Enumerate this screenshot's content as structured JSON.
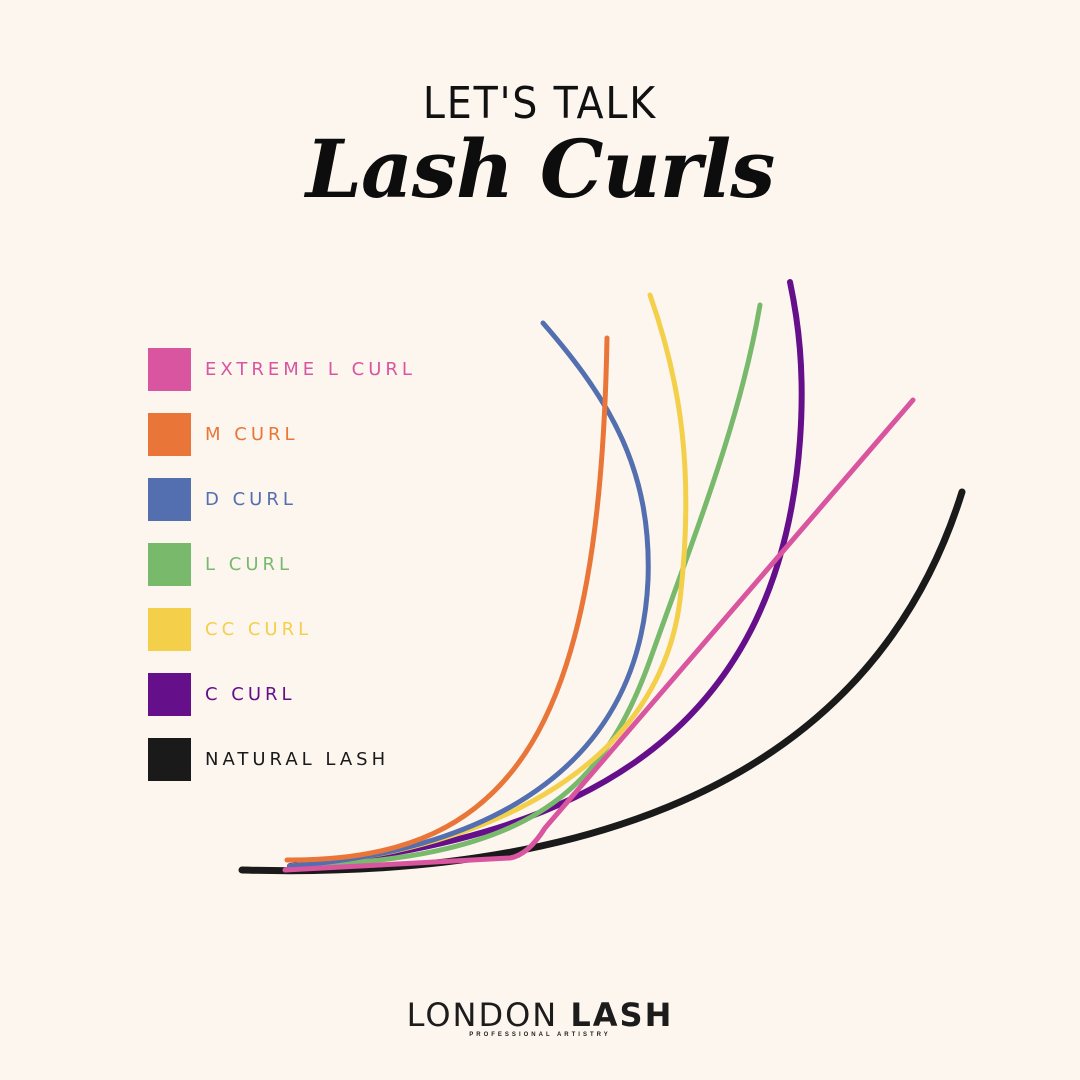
{
  "header": {
    "kicker": "LET'S TALK",
    "title": "Lash Curls"
  },
  "legend": [
    {
      "label": "EXTREME L CURL",
      "color": "#d9559f"
    },
    {
      "label": "M CURL",
      "color": "#e97638"
    },
    {
      "label": "D CURL",
      "color": "#536fb0"
    },
    {
      "label": "L CURL",
      "color": "#79b96c"
    },
    {
      "label": "CC CURL",
      "color": "#f4cf4a"
    },
    {
      "label": "C CURL",
      "color": "#650f8b"
    },
    {
      "label": "NATURAL LASH",
      "color": "#1a1a1a"
    }
  ],
  "brand": {
    "name_light": "LONDON",
    "name_bold": "LASH",
    "tagline": "PROFESSIONAL ARTISTRY"
  }
}
